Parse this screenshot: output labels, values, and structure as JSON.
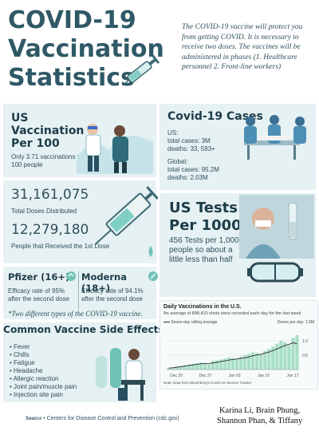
{
  "title": {
    "line1": "COVID-19",
    "line2": "Vaccination",
    "line3": "Statistics"
  },
  "intro_text": "The COVID-19 vaccine will protect you from getting COVID. It is necessary to receive two doses. The vaccines will be administered in phases (1. Healthcare personnel 2. Front-line workers)",
  "us_vaccination": {
    "heading_line1": "US",
    "heading_line2": "Vaccination",
    "heading_line3": "Per 100",
    "detail": "Only 3.71 vaccinations per 100 people"
  },
  "covid_cases": {
    "heading": "Covid-19 Cases",
    "us_label": "US:",
    "us_total": "total cases: 3M",
    "us_deaths": "deaths: 33, 593+",
    "global_label": "Global:",
    "global_total": "total cases: 95.2M",
    "global_deaths": "deaths: 2.03M"
  },
  "doses": {
    "total_value": "31,161,075",
    "total_label": "Total Doses Distributed",
    "first_value": "12,279,180",
    "first_label": "People that Received the 1st Dose"
  },
  "us_tests": {
    "heading_line1": "US Tests",
    "heading_line2": "Per 1000",
    "detail": "456 Tests per 1,000 people so about a little less than half"
  },
  "pfizer": {
    "heading": "Pfizer (16+)",
    "detail": "Efficacy rate of 95% after the second dose"
  },
  "moderna": {
    "heading": "Moderna (18+)",
    "detail": "Efficacy rate of 94.1% after the second dose"
  },
  "vaccine_note": "*Two different types of the COVID-19 vaccine.",
  "side_effects": {
    "heading": "Common Vaccine Side Effects",
    "items": [
      "Fever",
      "Chills",
      "Fatigue",
      "Headache",
      "Allergic reaction",
      "Joint pain/muscle pain",
      "Injection site pain"
    ]
  },
  "chart_data": {
    "type": "bar",
    "title": "Daily Vaccinations in the U.S.",
    "subtitle": "An average of 898,410 shots were recorded each day for the last week",
    "legend_bar": "Doses per day: 1.5M",
    "legend_line": "Seven-day rolling average",
    "note": "Note: Data from Bloomberg's Covid-19 Vaccine Tracker",
    "x_tick_labels": [
      "Dec 20",
      "Dec 27",
      "Jan 03",
      "Jan 10",
      "Jan 17"
    ],
    "y_tick_labels": [
      "1.0",
      "0.5"
    ],
    "ylim": [
      0,
      1.5
    ],
    "values": [
      0.05,
      0.07,
      0.1,
      0.13,
      0.15,
      0.18,
      0.2,
      0.22,
      0.25,
      0.22,
      0.18,
      0.3,
      0.32,
      0.35,
      0.38,
      0.42,
      0.4,
      0.36,
      0.45,
      0.5,
      0.55,
      0.6,
      0.58,
      0.52,
      0.65,
      0.72,
      0.8,
      0.9,
      1.0,
      0.95,
      0.85,
      1.1,
      1.2
    ],
    "rolling_avg": [
      0.05,
      0.06,
      0.08,
      0.1,
      0.12,
      0.14,
      0.16,
      0.18,
      0.2,
      0.21,
      0.21,
      0.23,
      0.25,
      0.28,
      0.3,
      0.33,
      0.35,
      0.37,
      0.39,
      0.41,
      0.44,
      0.48,
      0.51,
      0.53,
      0.57,
      0.61,
      0.66,
      0.72,
      0.78,
      0.84,
      0.88,
      0.93,
      0.9
    ]
  },
  "source": {
    "label": "Source",
    "text": "Centers for Disease Control and Prevention (cdc.gov)"
  },
  "authors": {
    "line1": "Karina Li, Brain Phung,",
    "line2": "Shannon Phan, & Tiffany"
  },
  "colors": {
    "panel": "#e6f1f3",
    "accent": "#6fc2b5",
    "title": "#2f5966"
  }
}
